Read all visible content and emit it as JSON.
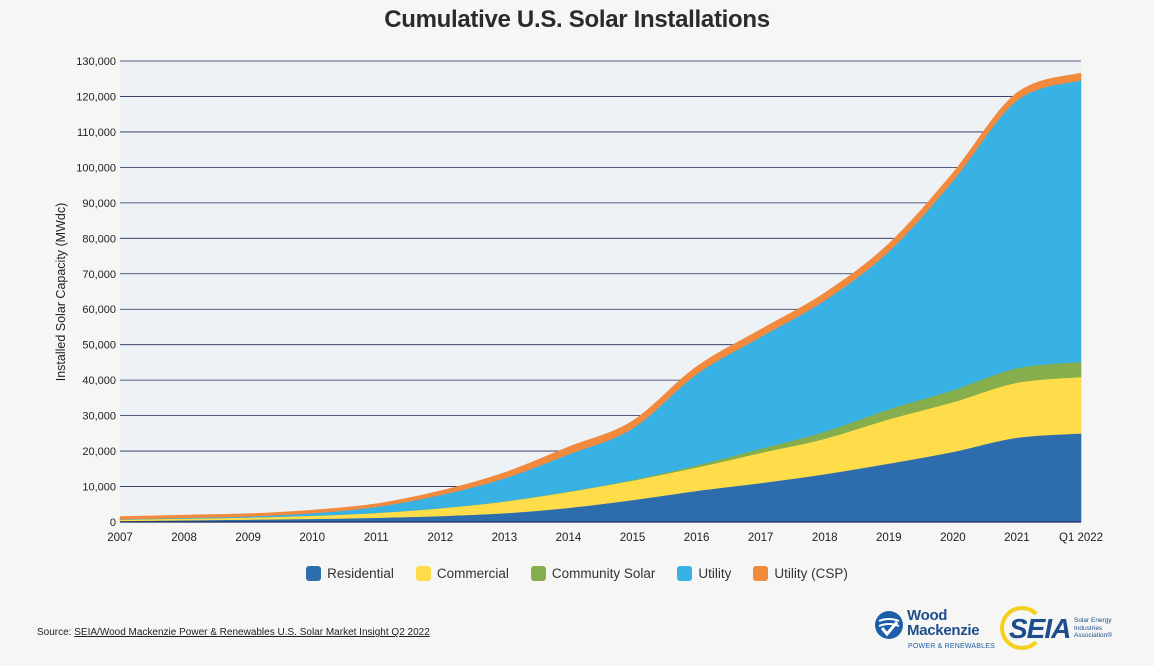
{
  "chart_data": {
    "type": "area",
    "stacked": true,
    "title": "Cumulative U.S. Solar Installations",
    "xlabel": "",
    "ylabel": "Installed Solar Capacity (MWdc)",
    "ylim": [
      0,
      130000
    ],
    "yticks": [
      0,
      10000,
      20000,
      30000,
      40000,
      50000,
      60000,
      70000,
      80000,
      90000,
      100000,
      110000,
      120000,
      130000
    ],
    "ytick_labels": [
      "0",
      "10,000",
      "20,000",
      "30,000",
      "40,000",
      "50,000",
      "60,000",
      "70,000",
      "80,000",
      "90,000",
      "100,000",
      "110,000",
      "120,000",
      "130,000"
    ],
    "categories": [
      "2007",
      "2008",
      "2009",
      "2010",
      "2011",
      "2012",
      "2013",
      "2014",
      "2015",
      "2016",
      "2017",
      "2018",
      "2019",
      "2020",
      "2021",
      "Q1 2022"
    ],
    "series": [
      {
        "name": "Residential",
        "color": "#2e6dad",
        "values": [
          300,
          500,
          700,
          900,
          1200,
          1700,
          2500,
          4000,
          6200,
          8800,
          11000,
          13500,
          16500,
          19800,
          23800,
          25000
        ]
      },
      {
        "name": "Commercial",
        "color": "#ffdd4a",
        "values": [
          400,
          500,
          600,
          900,
          1400,
          2200,
          3300,
          4500,
          5500,
          6600,
          8500,
          10000,
          12500,
          14000,
          15500,
          15900
        ]
      },
      {
        "name": "Community Solar",
        "color": "#86ae4c",
        "values": [
          0,
          0,
          0,
          0,
          0,
          20,
          50,
          100,
          200,
          600,
          1200,
          2000,
          2800,
          3400,
          4100,
          4300
        ]
      },
      {
        "name": "Utility",
        "color": "#38b1e4",
        "values": [
          100,
          200,
          300,
          700,
          1700,
          3700,
          6500,
          10500,
          14500,
          25700,
          31500,
          37000,
          44500,
          59000,
          75500,
          79400
        ]
      },
      {
        "name": "Utility (CSP)",
        "color": "#f28a3e",
        "values": [
          400,
          400,
          400,
          500,
          500,
          800,
          1200,
          1700,
          1700,
          1700,
          1700,
          1700,
          1700,
          1700,
          1700,
          1700
        ]
      }
    ],
    "grid": true,
    "legend": "bottom-center"
  },
  "source": {
    "prefix": "Source: ",
    "text": "SEIA/Wood Mackenzie Power & Renewables U.S. Solar Market Insight Q2 2022"
  },
  "logos": {
    "woodmac_name_line1": "Wood",
    "woodmac_name_line2": "Mackenzie",
    "woodmac_sub": "POWER & RENEWABLES",
    "seia_text": "SEIA",
    "seia_sub": "Solar Energy Industries Association®"
  }
}
